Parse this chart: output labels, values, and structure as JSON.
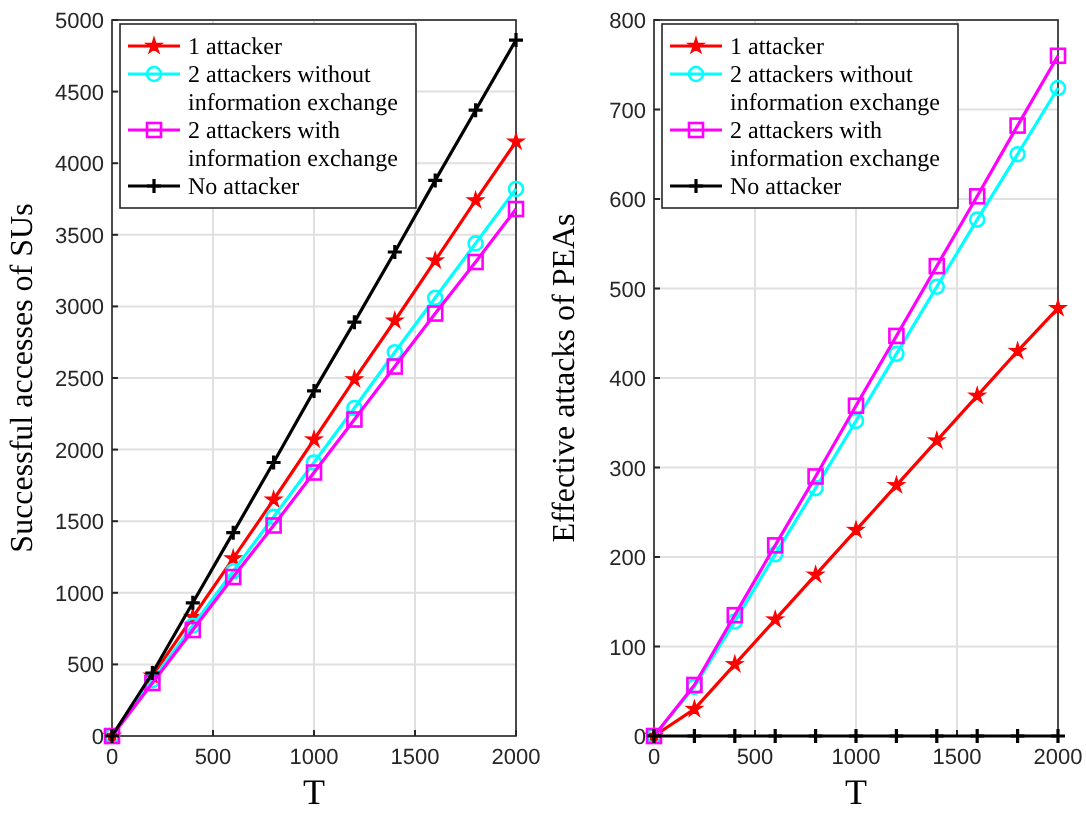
{
  "chart_data": [
    {
      "type": "line",
      "xlabel": "T",
      "ylabel": "Successful accesses of SUs",
      "x": [
        0,
        200,
        400,
        600,
        800,
        1000,
        1200,
        1400,
        1600,
        1800,
        2000
      ],
      "xlim": [
        0,
        2000
      ],
      "xticks": [
        0,
        500,
        1000,
        1500,
        2000
      ],
      "ylim": [
        0,
        5000
      ],
      "yticks": [
        0,
        500,
        1000,
        1500,
        2000,
        2500,
        3000,
        3500,
        4000,
        4500,
        5000
      ],
      "grid": true,
      "legend": "top left",
      "series": [
        {
          "name": "1 attacker",
          "color": "#ff0000",
          "marker": "star",
          "values": [
            0,
            420,
            830,
            1240,
            1650,
            2070,
            2490,
            2900,
            3320,
            3740,
            4150
          ]
        },
        {
          "name": "2 attackers without information exchange",
          "color": "#00ffff",
          "marker": "circle",
          "values": [
            0,
            390,
            770,
            1150,
            1530,
            1910,
            2290,
            2680,
            3060,
            3440,
            3820
          ]
        },
        {
          "name": "2 attackers with information exchange",
          "color": "#ff00ff",
          "marker": "square",
          "values": [
            0,
            370,
            740,
            1110,
            1470,
            1840,
            2210,
            2580,
            2950,
            3310,
            3680
          ]
        },
        {
          "name": "No attacker",
          "color": "#000000",
          "marker": "cross",
          "values": [
            0,
            440,
            930,
            1420,
            1910,
            2410,
            2890,
            3380,
            3880,
            4370,
            4860
          ]
        }
      ]
    },
    {
      "type": "line",
      "xlabel": "T",
      "ylabel": "Effective attacks of PEAs",
      "x": [
        0,
        200,
        400,
        600,
        800,
        1000,
        1200,
        1400,
        1600,
        1800,
        2000
      ],
      "xlim": [
        0,
        2000
      ],
      "xticks": [
        0,
        500,
        1000,
        1500,
        2000
      ],
      "ylim": [
        0,
        800
      ],
      "yticks": [
        0,
        100,
        200,
        300,
        400,
        500,
        600,
        700,
        800
      ],
      "grid": true,
      "legend": "top left",
      "series": [
        {
          "name": "1 attacker",
          "color": "#ff0000",
          "marker": "star",
          "values": [
            0,
            30,
            80,
            130,
            180,
            230,
            280,
            330,
            380,
            430,
            478
          ]
        },
        {
          "name": "2 attackers without information exchange",
          "color": "#00ffff",
          "marker": "circle",
          "values": [
            0,
            55,
            128,
            203,
            277,
            352,
            427,
            502,
            577,
            650,
            724
          ]
        },
        {
          "name": "2 attackers with information exchange",
          "color": "#ff00ff",
          "marker": "square",
          "values": [
            0,
            57,
            135,
            213,
            290,
            369,
            447,
            525,
            603,
            682,
            760
          ]
        },
        {
          "name": "No attacker",
          "color": "#000000",
          "marker": "cross",
          "values": [
            0,
            0,
            0,
            0,
            0,
            0,
            0,
            0,
            0,
            0,
            0
          ]
        }
      ]
    }
  ]
}
